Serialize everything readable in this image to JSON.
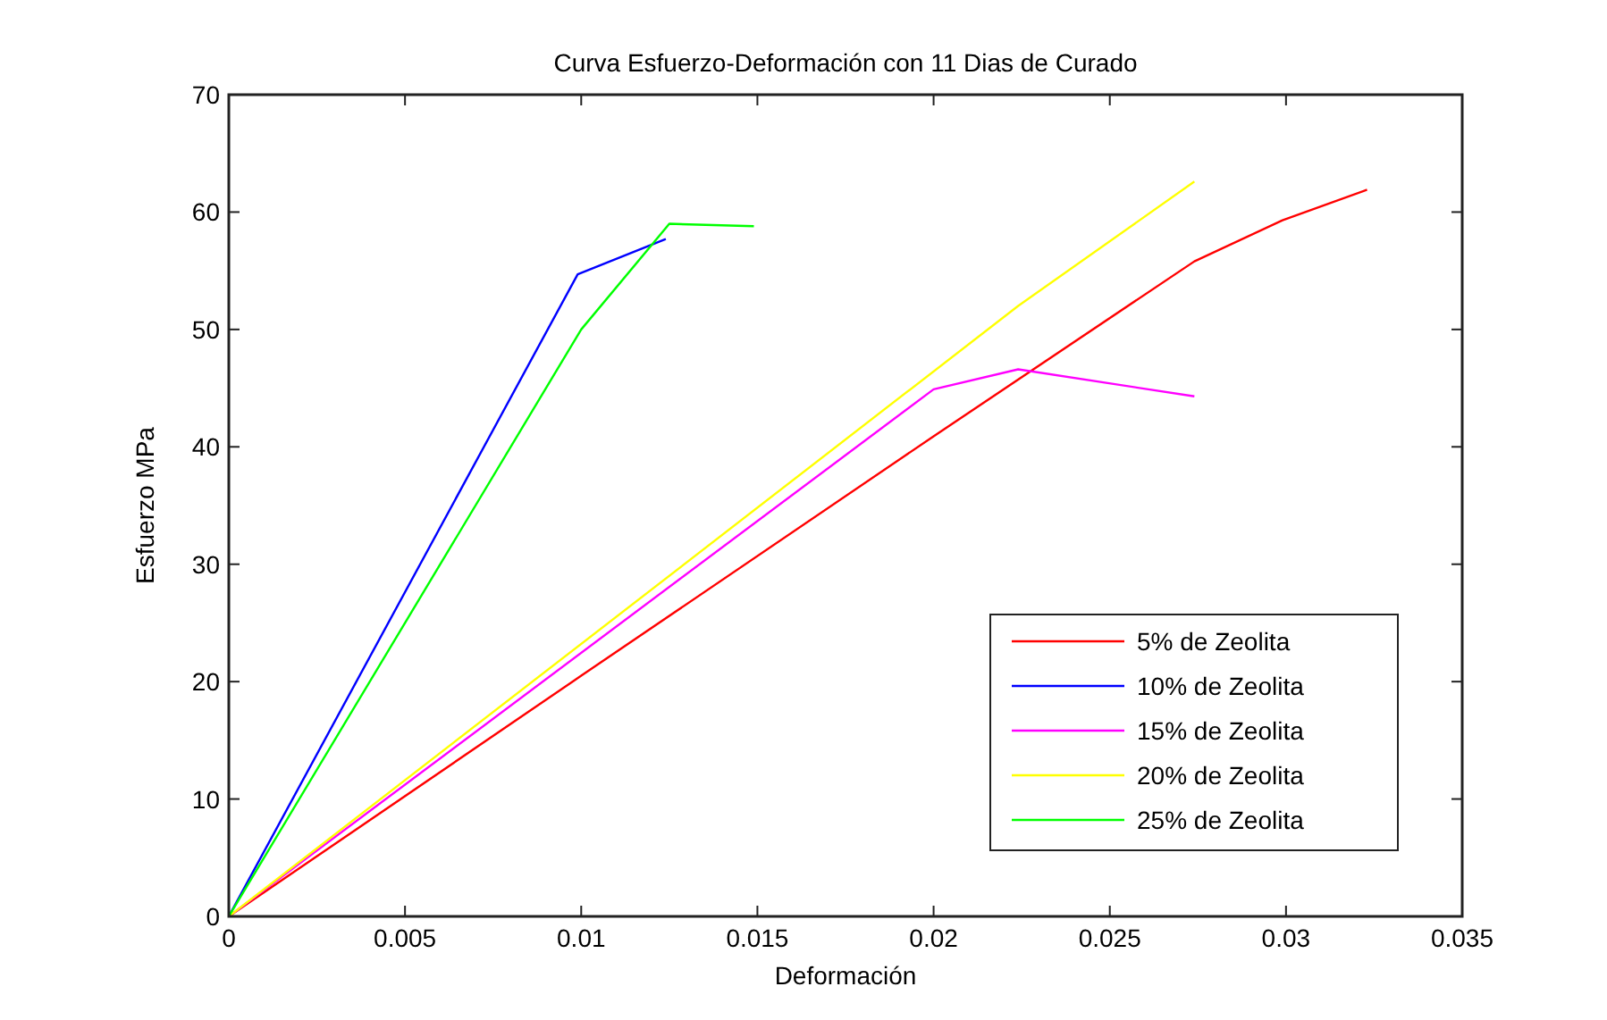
{
  "chart_data": {
    "type": "line",
    "title": "Curva Esfuerzo-Deformación con 11 Dias de Curado",
    "xlabel": "Deformación",
    "ylabel": "Esfuerzo MPa",
    "xlim": [
      0,
      0.035
    ],
    "xticks": [
      0,
      0.005,
      0.01,
      0.015,
      0.02,
      0.025,
      0.03,
      0.035
    ],
    "ylim": [
      0,
      70
    ],
    "yticks": [
      0,
      10,
      20,
      30,
      40,
      50,
      60,
      70
    ],
    "grid": false,
    "legend": "bottom right",
    "marker": "none",
    "line_style": "solid",
    "series": [
      {
        "name": "5% de Zeolita",
        "color": "#ff0000",
        "x": [
          0,
          0.01,
          0.02,
          0.0274,
          0.0299,
          0.0323
        ],
        "values": [
          0,
          20.5,
          40.9,
          55.8,
          59.3,
          61.9
        ]
      },
      {
        "name": "10% de Zeolita",
        "color": "#0000ff",
        "x": [
          0,
          0.0099,
          0.0124
        ],
        "values": [
          0,
          54.7,
          57.7
        ]
      },
      {
        "name": "15% de Zeolita",
        "color": "#ff00ff",
        "x": [
          0,
          0.02,
          0.0224,
          0.0274
        ],
        "values": [
          0,
          44.9,
          46.6,
          44.3
        ]
      },
      {
        "name": "20% de Zeolita",
        "color": "#ffff00",
        "x": [
          0,
          0.0224,
          0.0274
        ],
        "values": [
          0,
          52.0,
          62.6
        ]
      },
      {
        "name": "25% de Zeolita",
        "color": "#00ff00",
        "x": [
          0,
          0.01,
          0.0125,
          0.0149
        ],
        "values": [
          0,
          50.0,
          59.0,
          58.8
        ]
      }
    ]
  }
}
